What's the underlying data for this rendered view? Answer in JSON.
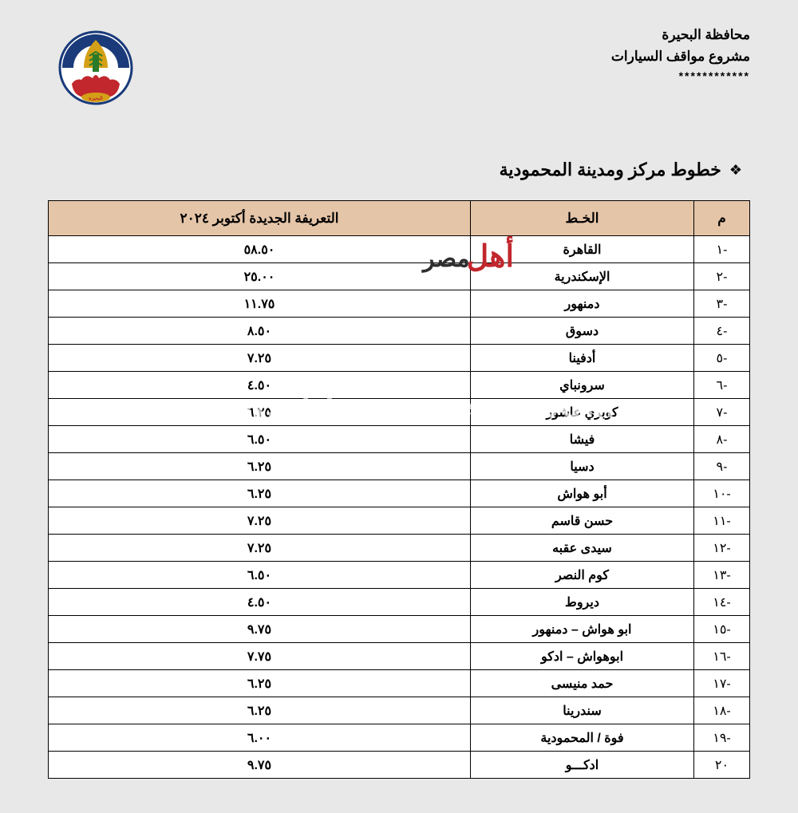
{
  "header": {
    "line1": "محافظة البحيرة",
    "line2": "مشروع مواقف السيارات",
    "stars": "************"
  },
  "title": "خطوط مركز ومدينة المحمودية",
  "table": {
    "columns": {
      "num": "م",
      "line": "الخـط",
      "price": "التعريفة الجديدة أكتوبر ٢٠٢٤"
    },
    "rows": [
      {
        "num": "-١",
        "line": "القاهرة",
        "price": "٥٨.٥٠"
      },
      {
        "num": "-٢",
        "line": "الإسكندرية",
        "price": "٢٥.٠٠"
      },
      {
        "num": "-٣",
        "line": "دمنهور",
        "price": "١١.٧٥"
      },
      {
        "num": "-٤",
        "line": "دسوق",
        "price": "٨.٥٠"
      },
      {
        "num": "-٥",
        "line": "أدفينا",
        "price": "٧.٢٥"
      },
      {
        "num": "-٦",
        "line": "سرونباي",
        "price": "٤.٥٠"
      },
      {
        "num": "-٧",
        "line": "كوبري عاشور",
        "price": "٦.٢٥"
      },
      {
        "num": "-٨",
        "line": "فيشا",
        "price": "٦.٥٠"
      },
      {
        "num": "-٩",
        "line": "دسيا",
        "price": "٦.٢٥"
      },
      {
        "num": "-١٠",
        "line": "أبو هواش",
        "price": "٦.٢٥"
      },
      {
        "num": "-١١",
        "line": "حسن قاسم",
        "price": "٧.٢٥"
      },
      {
        "num": "-١٢",
        "line": "سيدى عقبه",
        "price": "٧.٢٥"
      },
      {
        "num": "-١٣",
        "line": "كوم النصر",
        "price": "٦.٥٠"
      },
      {
        "num": "-١٤",
        "line": "ديروط",
        "price": "٤.٥٠"
      },
      {
        "num": "-١٥",
        "line": "ابو هواش – دمنهور",
        "price": "٩.٧٥"
      },
      {
        "num": "-١٦",
        "line": "ابوهواش – ادكو",
        "price": "٧.٧٥"
      },
      {
        "num": "-١٧",
        "line": "حمد منيسى",
        "price": "٦.٢٥"
      },
      {
        "num": "-١٨",
        "line": "سندرينا",
        "price": "٦.٢٥"
      },
      {
        "num": "-١٩",
        "line": "فوة / المحمودية",
        "price": "٦.٠٠"
      },
      {
        "num": "٢٠",
        "line": "ادكـــو",
        "price": "٩.٧٥"
      }
    ]
  },
  "watermark": {
    "site": "www.ahlmasrnews.com",
    "brand_ahl": "أهل",
    "brand_masr": "مصر"
  },
  "styling": {
    "page_bg": "#e8e8e8",
    "header_bg": "#e5c5a8",
    "border_color": "#000000",
    "text_color": "#000000",
    "brand_red": "#c1272d",
    "brand_dark": "#2e2e2e",
    "watermark_white": "rgba(255,255,255,0.7)",
    "col_widths": {
      "num": 70,
      "line": 280
    }
  }
}
